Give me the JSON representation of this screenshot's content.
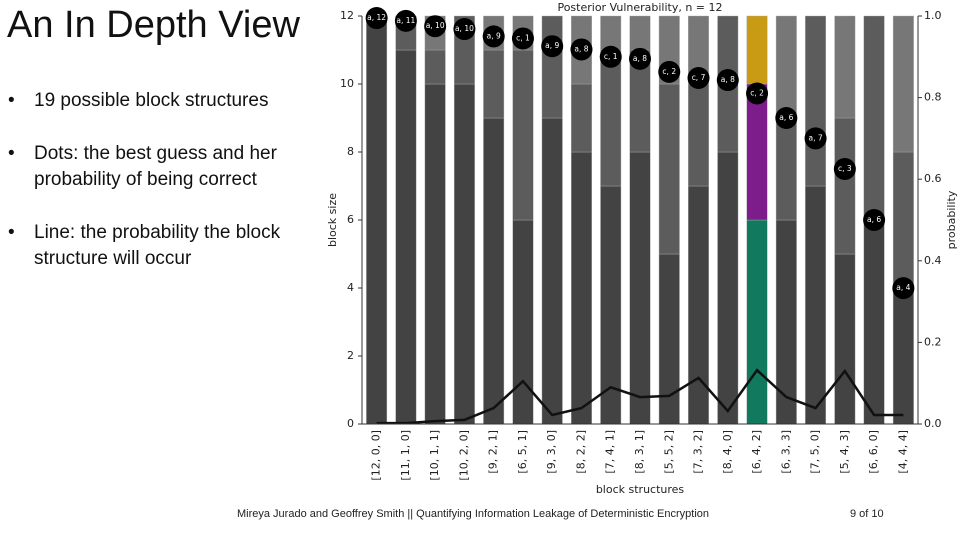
{
  "slide": {
    "title": "An In Depth View",
    "bullets": [
      "19 possible block structures",
      "Dots: the best guess and her probability of being correct",
      "Line: the probability the block structure will occur"
    ],
    "footer": "Mireya Jurado and Geoffrey Smith || Quantifying Information Leakage of Deterministic Encryption",
    "page_number": "9 of 10"
  },
  "chart_data": {
    "type": "bar",
    "stacked": true,
    "title": "Posterior Vulnerability, n = 12",
    "xlabel": "block structures",
    "ylabel": "block size",
    "y2label": "probability",
    "categories": [
      "[12, 0, 0]",
      "[11, 1, 0]",
      "[10, 1, 1]",
      "[10, 2, 0]",
      "[9, 2, 1]",
      "[6, 5, 1]",
      "[9, 3, 0]",
      "[8, 2, 2]",
      "[7, 4, 1]",
      "[8, 3, 1]",
      "[5, 5, 2]",
      "[7, 3, 2]",
      "[8, 4, 0]",
      "[6, 4, 2]",
      "[6, 3, 3]",
      "[7, 5, 0]",
      "[5, 4, 3]",
      "[6, 6, 0]",
      "[4, 4, 4]"
    ],
    "ylim": [
      0,
      12
    ],
    "yticks": [
      0,
      2,
      4,
      6,
      8,
      10,
      12
    ],
    "y2lim": [
      0,
      1
    ],
    "y2ticks": [
      {
        "value": 0,
        "label": "0.0"
      },
      0.2,
      0.4,
      0.6,
      0.8,
      {
        "value": 1,
        "label": "1.0"
      }
    ],
    "series": [
      {
        "type": "bar",
        "axis": "y",
        "values": [
          12,
          11,
          10,
          10,
          9,
          6,
          9,
          8,
          7,
          8,
          5,
          7,
          8,
          6,
          6,
          7,
          5,
          6,
          4
        ],
        "colors": [
          "#434343",
          "#434343",
          "#434343",
          "#434343",
          "#434343",
          "#434343",
          "#434343",
          "#434343",
          "#434343",
          "#434343",
          "#434343",
          "#434343",
          "#434343",
          "#117a5e",
          "#434343",
          "#434343",
          "#434343",
          "#434343",
          "#434343"
        ]
      },
      {
        "type": "bar",
        "axis": "y",
        "values": [
          0,
          1,
          1,
          2,
          2,
          5,
          3,
          2,
          4,
          3,
          5,
          3,
          4,
          4,
          3,
          5,
          4,
          6,
          4
        ],
        "colors": [
          "#5c5c5c",
          "#5c5c5c",
          "#5c5c5c",
          "#5c5c5c",
          "#5c5c5c",
          "#5c5c5c",
          "#5c5c5c",
          "#5c5c5c",
          "#5c5c5c",
          "#5c5c5c",
          "#5c5c5c",
          "#5c5c5c",
          "#5c5c5c",
          "#7d1d8c",
          "#5c5c5c",
          "#5c5c5c",
          "#5c5c5c",
          "#5c5c5c",
          "#5c5c5c"
        ]
      },
      {
        "type": "bar",
        "axis": "y",
        "values": [
          0,
          0,
          1,
          0,
          1,
          1,
          0,
          2,
          1,
          1,
          2,
          2,
          0,
          2,
          3,
          0,
          3,
          0,
          4
        ],
        "colors": [
          "#777777",
          "#777777",
          "#777777",
          "#777777",
          "#777777",
          "#777777",
          "#777777",
          "#777777",
          "#777777",
          "#777777",
          "#777777",
          "#777777",
          "#777777",
          "#c99a14",
          "#777777",
          "#777777",
          "#777777",
          "#777777",
          "#777777"
        ]
      },
      {
        "type": "scatter",
        "axis": "y2",
        "color": "#000000",
        "values": [
          0.995,
          0.988,
          0.975,
          0.968,
          0.95,
          0.945,
          0.926,
          0.918,
          0.9,
          0.895,
          0.863,
          0.848,
          0.843,
          0.81,
          0.75,
          0.7,
          0.625,
          0.5,
          0.333
        ],
        "labels": [
          "a, 12",
          "a, 11",
          "a, 10",
          "a, 10",
          "a, 9",
          "c, 1",
          "a, 9",
          "a, 8",
          "c, 1",
          "a, 8",
          "c, 2",
          "c, 7",
          "a, 8",
          "c, 2",
          "a, 6",
          "a, 7",
          "c, 3",
          "a, 6",
          "a, 4"
        ]
      },
      {
        "type": "line",
        "axis": "y2",
        "color": "#111111",
        "values": [
          0.002,
          0.002,
          0.007,
          0.01,
          0.039,
          0.105,
          0.022,
          0.039,
          0.09,
          0.066,
          0.069,
          0.113,
          0.032,
          0.132,
          0.066,
          0.039,
          0.13,
          0.022,
          0.022
        ]
      }
    ]
  }
}
